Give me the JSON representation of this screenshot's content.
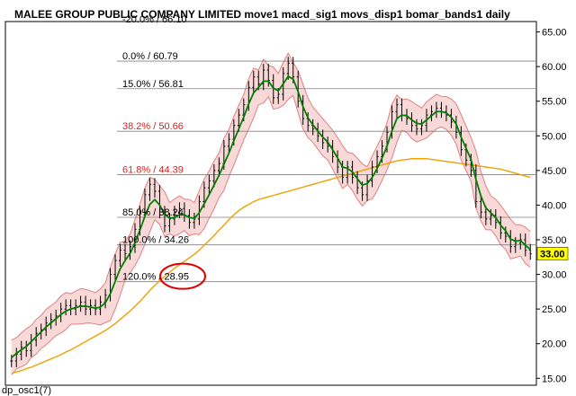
{
  "header": {
    "title": "MALEE GROUP PUBLIC COMPANY LIMITED move1 macd_sig1 movs_disp1 bomar_bands1   daily"
  },
  "footer": {
    "label": "dp_osc1(7)"
  },
  "colors": {
    "price_bar": "#000000",
    "moving_average_short": "#008000",
    "moving_average_long": "#f0a000",
    "bands_fill": "#f9d8d8",
    "bands_line": "#e08080",
    "fib_red": "#e02020",
    "fib_black": "#000000",
    "current_price_tag": "#ffff00",
    "annotation_circle": "#e00000"
  },
  "chart_data": {
    "type": "line",
    "title": "MALEE GROUP PUBLIC COMPANY LIMITED move1 macd_sig1 movs_disp1 bomar_bands1   daily",
    "y_axis_side": "right",
    "ylim": [
      14,
      66.5
    ],
    "y_ticks": [
      "15.00",
      "20.00",
      "25.00",
      "30.00",
      "35.00",
      "40.00",
      "45.00",
      "50.00",
      "55.00",
      "60.00",
      "65.00"
    ],
    "y_tick_values": [
      15,
      20,
      25,
      30,
      35,
      40,
      45,
      50,
      55,
      60,
      65
    ],
    "grid": false,
    "current_price": {
      "value": 33.0,
      "label": "33.00"
    },
    "fib_levels": [
      {
        "label": "-20.0% / 66.10",
        "value": 66.1,
        "color": "black",
        "line": false
      },
      {
        "label": "0.0% / 60.79",
        "value": 60.79,
        "color": "black",
        "line": true
      },
      {
        "label": "15.0% / 56.81",
        "value": 56.81,
        "color": "black",
        "line": true
      },
      {
        "label": "38.2% / 50.66",
        "value": 50.66,
        "color": "red",
        "line": true
      },
      {
        "label": "61.8% / 44.39",
        "value": 44.39,
        "color": "red",
        "line": true
      },
      {
        "label": "85.0% / 38.24",
        "value": 38.24,
        "color": "black",
        "line": true
      },
      {
        "label": "100.0% / 34.26",
        "value": 34.26,
        "color": "black",
        "line": true
      },
      {
        "label": "120.0% / 28.95",
        "value": 28.95,
        "color": "black",
        "line": true
      }
    ],
    "annotation": {
      "type": "circle",
      "around_level": "120.0% / 28.95"
    },
    "series": [
      {
        "role": "price",
        "style": "bars",
        "values": [
          17.5,
          18.5,
          19.5,
          19.0,
          20.5,
          21.5,
          22.0,
          23.0,
          23.5,
          24.0,
          25.0,
          25.5,
          25.0,
          25.5,
          26.0,
          25.0,
          25.5,
          25.0,
          26.0,
          27.0,
          30.0,
          32.0,
          33.5,
          33.0,
          34.0,
          36.5,
          39.0,
          41.5,
          43.0,
          42.0,
          39.0,
          37.0,
          38.0,
          39.0,
          39.5,
          38.5,
          37.5,
          38.0,
          40.5,
          42.5,
          43.5,
          45.0,
          46.0,
          48.5,
          49.5,
          51.5,
          53.0,
          54.5,
          57.0,
          58.5,
          57.5,
          59.5,
          58.0,
          55.5,
          56.0,
          59.0,
          60.5,
          58.5,
          55.0,
          52.5,
          51.5,
          51.0,
          50.0,
          49.0,
          48.5,
          47.0,
          45.5,
          44.0,
          45.5,
          44.0,
          42.5,
          41.5,
          43.5,
          45.5,
          47.0,
          48.5,
          50.5,
          53.5,
          54.5,
          53.0,
          52.5,
          51.5,
          51.0,
          51.5,
          53.0,
          53.5,
          54.0,
          53.5,
          53.0,
          52.0,
          50.5,
          48.0,
          46.5,
          45.0,
          40.5,
          39.0,
          38.0,
          38.5,
          37.5,
          36.0,
          35.5,
          34.0,
          34.5,
          35.0,
          33.5,
          33.0
        ]
      },
      {
        "role": "short moving average",
        "style": "line",
        "values": [
          18.0,
          18.6,
          19.1,
          19.6,
          20.3,
          21.0,
          21.7,
          22.4,
          23.0,
          23.6,
          24.2,
          24.7,
          25.0,
          25.2,
          25.4,
          25.4,
          25.3,
          25.1,
          25.3,
          25.9,
          27.2,
          29.0,
          30.8,
          32.0,
          33.0,
          34.6,
          36.4,
          38.4,
          40.1,
          40.8,
          40.0,
          38.7,
          38.1,
          38.2,
          38.6,
          38.6,
          38.2,
          38.1,
          38.9,
          40.2,
          41.5,
          42.9,
          44.3,
          45.9,
          47.5,
          49.3,
          51.0,
          52.7,
          54.6,
          56.2,
          57.0,
          57.9,
          57.9,
          56.9,
          56.5,
          57.5,
          58.6,
          58.2,
          56.4,
          54.2,
          52.6,
          51.6,
          50.7,
          49.8,
          49.1,
          48.0,
          46.8,
          45.5,
          45.3,
          44.8,
          43.8,
          42.9,
          43.1,
          44.0,
          45.3,
          46.8,
          48.5,
          50.7,
          52.5,
          53.0,
          52.9,
          52.3,
          51.8,
          51.7,
          52.3,
          52.9,
          53.5,
          53.5,
          53.3,
          52.7,
          51.7,
          49.8,
          48.2,
          46.6,
          43.7,
          41.3,
          39.6,
          38.9,
          38.2,
          37.1,
          36.3,
          35.1,
          34.8,
          34.9,
          34.2,
          33.6
        ]
      },
      {
        "role": "long moving average",
        "style": "line",
        "values": [
          15.7,
          15.9,
          16.1,
          16.4,
          16.6,
          16.9,
          17.2,
          17.5,
          17.8,
          18.1,
          18.4,
          18.8,
          19.1,
          19.5,
          19.9,
          20.3,
          20.7,
          21.1,
          21.5,
          21.9,
          22.4,
          22.9,
          23.5,
          24.1,
          24.7,
          25.4,
          26.1,
          26.9,
          27.7,
          28.4,
          29.1,
          29.7,
          30.3,
          30.9,
          31.4,
          31.9,
          32.4,
          32.9,
          33.5,
          34.2,
          34.9,
          35.6,
          36.4,
          37.1,
          37.9,
          38.6,
          39.2,
          39.7,
          40.1,
          40.5,
          40.8,
          41.0,
          41.2,
          41.4,
          41.6,
          41.8,
          42.0,
          42.2,
          42.4,
          42.6,
          42.8,
          43.0,
          43.2,
          43.4,
          43.6,
          43.8,
          44.0,
          44.2,
          44.4,
          44.6,
          44.8,
          45.0,
          45.2,
          45.4,
          45.6,
          45.8,
          46.0,
          46.2,
          46.4,
          46.5,
          46.6,
          46.7,
          46.7,
          46.7,
          46.7,
          46.6,
          46.5,
          46.4,
          46.3,
          46.2,
          46.1,
          46.0,
          45.9,
          45.8,
          45.7,
          45.6,
          45.5,
          45.4,
          45.3,
          45.2,
          45.0,
          44.8,
          44.6,
          44.4,
          44.2,
          44.0
        ]
      }
    ]
  }
}
